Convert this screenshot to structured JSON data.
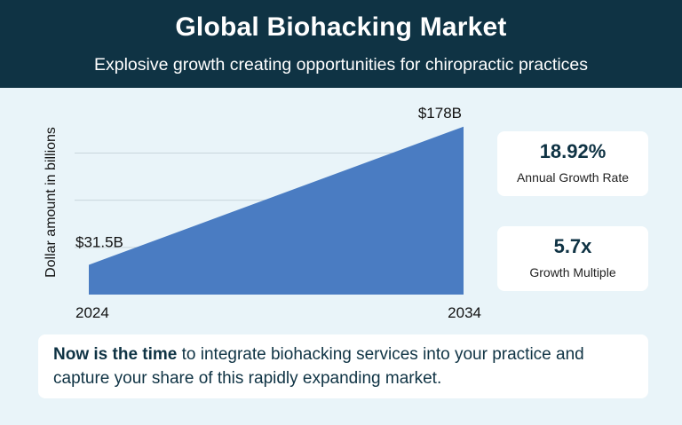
{
  "header": {
    "title": "Global Biohacking Market",
    "subtitle": "Explosive growth creating opportunities for chiropractic practices"
  },
  "chart_data": {
    "type": "area",
    "x": [
      2024,
      2034
    ],
    "xticks": [
      "2024",
      "2034"
    ],
    "values": [
      31.5,
      178
    ],
    "data_labels": [
      "$31.5B",
      "$178B"
    ],
    "ylabel": "Dollar amount in billions",
    "ylim": [
      0,
      190
    ],
    "grid": true,
    "fill_color": "#4a7cc2"
  },
  "stats": [
    {
      "value": "18.92%",
      "label": "Annual Growth Rate"
    },
    {
      "value": "5.7x",
      "label": "Growth Multiple"
    }
  ],
  "cta": {
    "strong": "Now is the time",
    "text": " to integrate biohacking services into your practice and capture your share of this rapidly expanding market."
  },
  "colors": {
    "header_bg": "#0f3344",
    "page_bg": "#e9f4f9",
    "accent": "#4a7cc2"
  }
}
